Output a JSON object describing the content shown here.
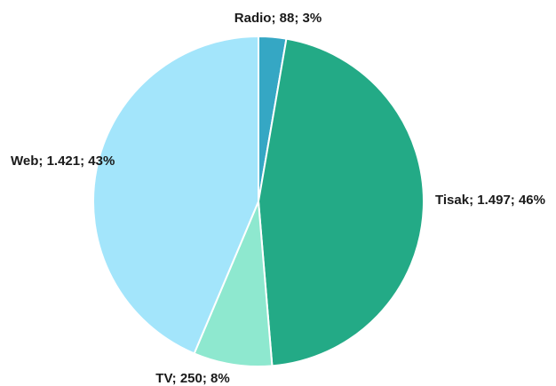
{
  "chart_data": {
    "type": "pie",
    "start_angle_deg": 0,
    "direction": "clockwise",
    "legend": "none",
    "slices": [
      {
        "label": "Radio",
        "value": 88,
        "value_text": "88",
        "percent_text": "3%",
        "color": "#35a7c4"
      },
      {
        "label": "Tisak",
        "value": 1497,
        "value_text": "1.497",
        "percent_text": "46%",
        "color": "#23aa86"
      },
      {
        "label": "TV",
        "value": 250,
        "value_text": "250",
        "percent_text": "8%",
        "color": "#8ee8cf"
      },
      {
        "label": "Web",
        "value": 1421,
        "value_text": "1.421",
        "percent_text": "43%",
        "color": "#a3e5fb"
      }
    ]
  }
}
